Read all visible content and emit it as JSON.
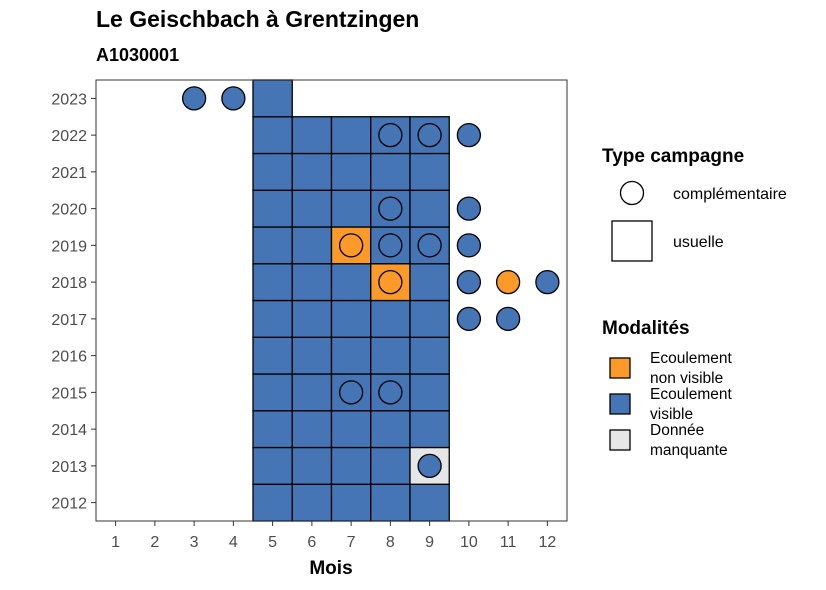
{
  "chart_data": {
    "type": "heatmap",
    "title": "Le Geischbach à Grentzingen",
    "subtitle": "A1030001",
    "xlabel": "Mois",
    "ylabel": "",
    "x_ticks": [
      1,
      2,
      3,
      4,
      5,
      6,
      7,
      8,
      9,
      10,
      11,
      12
    ],
    "y_ticks": [
      2012,
      2013,
      2014,
      2015,
      2016,
      2017,
      2018,
      2019,
      2020,
      2021,
      2022,
      2023
    ],
    "xlim": [
      0.5,
      12.5
    ],
    "ylim": [
      2011.5,
      2023.5
    ],
    "legend_shape": {
      "title": "Type campagne",
      "entries": [
        {
          "label": "complémentaire",
          "shape": "circle"
        },
        {
          "label": "usuelle",
          "shape": "square"
        }
      ]
    },
    "legend_color": {
      "title": "Modalités",
      "entries": [
        {
          "line1": "Ecoulement",
          "line2": "non visible",
          "key": "non_visible",
          "color": "#FB9A29"
        },
        {
          "line1": "Ecoulement",
          "line2": "visible",
          "key": "visible",
          "color": "#4575B4"
        },
        {
          "line1": "Donnée",
          "line2": "manquante",
          "key": "manquante",
          "color": "#E6E6E6"
        }
      ]
    },
    "legend_placement": "right",
    "grid": false,
    "squares": [
      {
        "year": 2012,
        "month": 5,
        "m": "visible"
      },
      {
        "year": 2012,
        "month": 6,
        "m": "visible"
      },
      {
        "year": 2012,
        "month": 7,
        "m": "visible"
      },
      {
        "year": 2012,
        "month": 8,
        "m": "visible"
      },
      {
        "year": 2012,
        "month": 9,
        "m": "visible"
      },
      {
        "year": 2013,
        "month": 5,
        "m": "visible"
      },
      {
        "year": 2013,
        "month": 6,
        "m": "visible"
      },
      {
        "year": 2013,
        "month": 7,
        "m": "visible"
      },
      {
        "year": 2013,
        "month": 8,
        "m": "visible"
      },
      {
        "year": 2013,
        "month": 9,
        "m": "manquante"
      },
      {
        "year": 2014,
        "month": 5,
        "m": "visible"
      },
      {
        "year": 2014,
        "month": 6,
        "m": "visible"
      },
      {
        "year": 2014,
        "month": 7,
        "m": "visible"
      },
      {
        "year": 2014,
        "month": 8,
        "m": "visible"
      },
      {
        "year": 2014,
        "month": 9,
        "m": "visible"
      },
      {
        "year": 2015,
        "month": 5,
        "m": "visible"
      },
      {
        "year": 2015,
        "month": 6,
        "m": "visible"
      },
      {
        "year": 2015,
        "month": 7,
        "m": "visible"
      },
      {
        "year": 2015,
        "month": 8,
        "m": "visible"
      },
      {
        "year": 2015,
        "month": 9,
        "m": "visible"
      },
      {
        "year": 2016,
        "month": 5,
        "m": "visible"
      },
      {
        "year": 2016,
        "month": 6,
        "m": "visible"
      },
      {
        "year": 2016,
        "month": 7,
        "m": "visible"
      },
      {
        "year": 2016,
        "month": 8,
        "m": "visible"
      },
      {
        "year": 2016,
        "month": 9,
        "m": "visible"
      },
      {
        "year": 2017,
        "month": 5,
        "m": "visible"
      },
      {
        "year": 2017,
        "month": 6,
        "m": "visible"
      },
      {
        "year": 2017,
        "month": 7,
        "m": "visible"
      },
      {
        "year": 2017,
        "month": 8,
        "m": "visible"
      },
      {
        "year": 2017,
        "month": 9,
        "m": "visible"
      },
      {
        "year": 2018,
        "month": 5,
        "m": "visible"
      },
      {
        "year": 2018,
        "month": 6,
        "m": "visible"
      },
      {
        "year": 2018,
        "month": 7,
        "m": "visible"
      },
      {
        "year": 2018,
        "month": 8,
        "m": "non_visible"
      },
      {
        "year": 2018,
        "month": 9,
        "m": "visible"
      },
      {
        "year": 2019,
        "month": 5,
        "m": "visible"
      },
      {
        "year": 2019,
        "month": 6,
        "m": "visible"
      },
      {
        "year": 2019,
        "month": 7,
        "m": "non_visible"
      },
      {
        "year": 2019,
        "month": 8,
        "m": "visible"
      },
      {
        "year": 2019,
        "month": 9,
        "m": "visible"
      },
      {
        "year": 2020,
        "month": 5,
        "m": "visible"
      },
      {
        "year": 2020,
        "month": 6,
        "m": "visible"
      },
      {
        "year": 2020,
        "month": 7,
        "m": "visible"
      },
      {
        "year": 2020,
        "month": 8,
        "m": "visible"
      },
      {
        "year": 2020,
        "month": 9,
        "m": "visible"
      },
      {
        "year": 2021,
        "month": 5,
        "m": "visible"
      },
      {
        "year": 2021,
        "month": 6,
        "m": "visible"
      },
      {
        "year": 2021,
        "month": 7,
        "m": "visible"
      },
      {
        "year": 2021,
        "month": 8,
        "m": "visible"
      },
      {
        "year": 2021,
        "month": 9,
        "m": "visible"
      },
      {
        "year": 2022,
        "month": 5,
        "m": "visible"
      },
      {
        "year": 2022,
        "month": 6,
        "m": "visible"
      },
      {
        "year": 2022,
        "month": 7,
        "m": "visible"
      },
      {
        "year": 2022,
        "month": 8,
        "m": "visible"
      },
      {
        "year": 2022,
        "month": 9,
        "m": "visible"
      },
      {
        "year": 2023,
        "month": 5,
        "m": "visible"
      }
    ],
    "circles": [
      {
        "year": 2023,
        "month": 3,
        "m": "visible"
      },
      {
        "year": 2023,
        "month": 4,
        "m": "visible"
      },
      {
        "year": 2022,
        "month": 8,
        "m": "visible"
      },
      {
        "year": 2022,
        "month": 9,
        "m": "visible"
      },
      {
        "year": 2022,
        "month": 10,
        "m": "visible"
      },
      {
        "year": 2020,
        "month": 8,
        "m": "visible"
      },
      {
        "year": 2020,
        "month": 10,
        "m": "visible"
      },
      {
        "year": 2019,
        "month": 7,
        "m": "non_visible"
      },
      {
        "year": 2019,
        "month": 8,
        "m": "visible"
      },
      {
        "year": 2019,
        "month": 9,
        "m": "visible"
      },
      {
        "year": 2019,
        "month": 10,
        "m": "visible"
      },
      {
        "year": 2018,
        "month": 8,
        "m": "non_visible"
      },
      {
        "year": 2018,
        "month": 10,
        "m": "visible"
      },
      {
        "year": 2018,
        "month": 11,
        "m": "non_visible"
      },
      {
        "year": 2018,
        "month": 12,
        "m": "visible"
      },
      {
        "year": 2017,
        "month": 10,
        "m": "visible"
      },
      {
        "year": 2017,
        "month": 11,
        "m": "visible"
      },
      {
        "year": 2015,
        "month": 7,
        "m": "visible"
      },
      {
        "year": 2015,
        "month": 8,
        "m": "visible"
      },
      {
        "year": 2013,
        "month": 9,
        "m": "visible"
      }
    ]
  }
}
